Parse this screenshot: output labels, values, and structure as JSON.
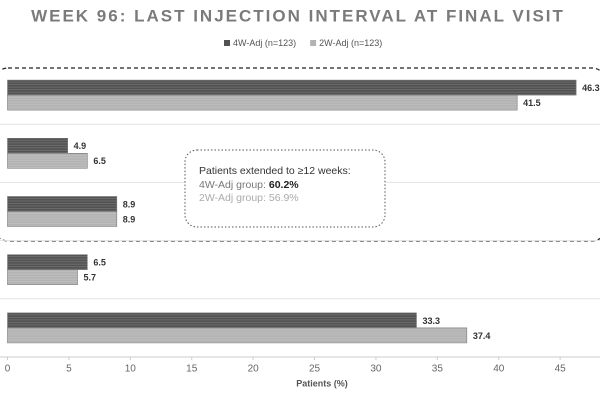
{
  "chart_data": {
    "type": "hbar",
    "title": "WEEK 96: LAST INJECTION INTERVAL AT FINAL VISIT",
    "categories": [
      null,
      null,
      null,
      null,
      null
    ],
    "series": [
      {
        "name": "4W-Adj (n=123)",
        "color": "#525252",
        "values": [
          46.3,
          4.9,
          8.9,
          6.5,
          33.3
        ]
      },
      {
        "name": "2W-Adj (n=123)",
        "color": "#b3b3b3",
        "values": [
          41.5,
          6.5,
          8.9,
          5.7,
          37.4
        ]
      }
    ],
    "x_label": "Patients (%)",
    "xlim": [
      0,
      48
    ],
    "xticks": [
      0,
      5,
      10,
      15,
      20,
      25,
      30,
      35,
      40,
      45
    ],
    "grid": false,
    "annotation": {
      "heading": "Patients extended to ≥12 weeks:",
      "lines": [
        {
          "label": "4W-Adj group:",
          "value": "60.2%"
        },
        {
          "label": "2W-Adj group:",
          "value": "56.9%"
        }
      ]
    }
  }
}
